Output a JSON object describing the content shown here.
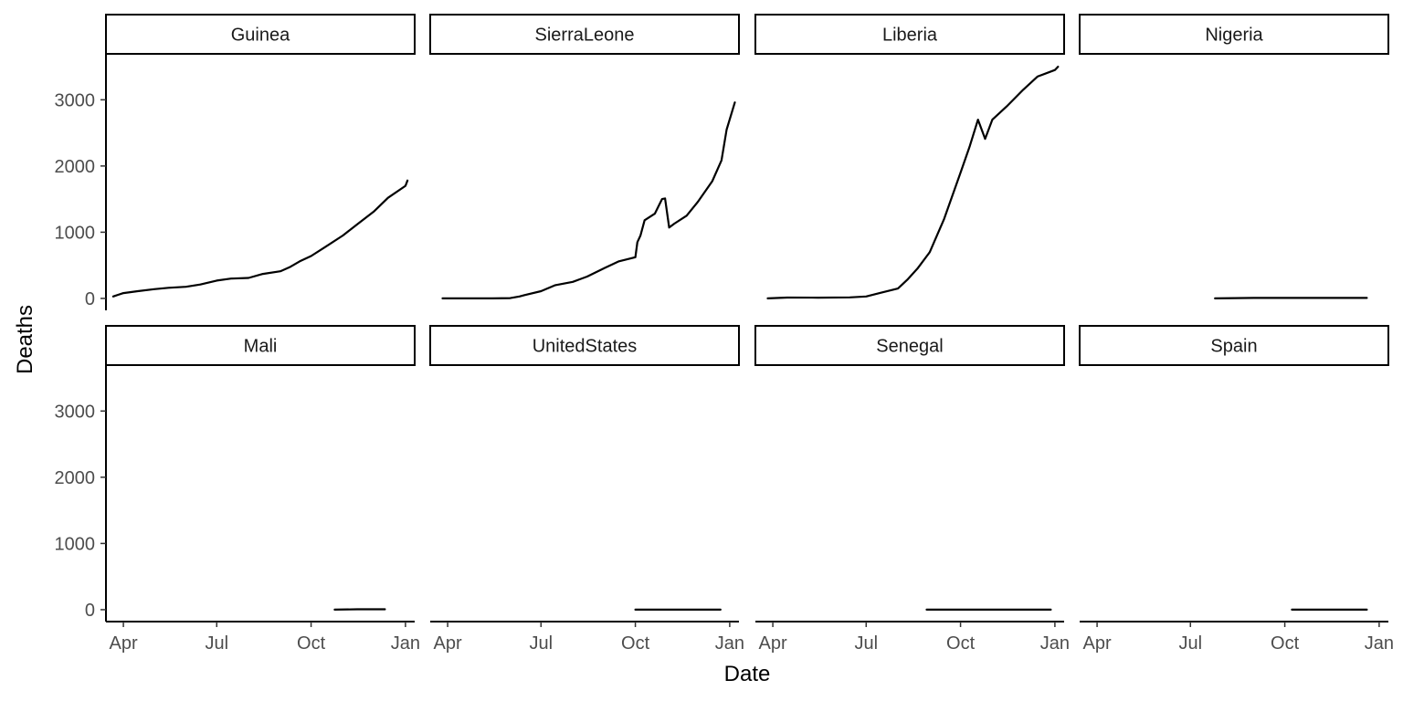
{
  "chart_data": {
    "type": "line",
    "facet": "wrap",
    "ncol": 4,
    "xlabel": "Date",
    "ylabel": "Deaths",
    "x_range": [
      "2014-03-15",
      "2015-01-10"
    ],
    "ylim": [
      -180,
      3680
    ],
    "x_ticks": [
      {
        "date": "2014-04-01",
        "label": "Apr"
      },
      {
        "date": "2014-07-01",
        "label": "Jul"
      },
      {
        "date": "2014-10-01",
        "label": "Oct"
      },
      {
        "date": "2015-01-01",
        "label": "Jan"
      }
    ],
    "y_ticks": [
      0,
      1000,
      2000,
      3000
    ],
    "panels": [
      {
        "name": "Guinea",
        "series": [
          {
            "x": "2014-03-22",
            "y": 29
          },
          {
            "x": "2014-04-01",
            "y": 80
          },
          {
            "x": "2014-04-15",
            "y": 110
          },
          {
            "x": "2014-05-01",
            "y": 140
          },
          {
            "x": "2014-05-15",
            "y": 160
          },
          {
            "x": "2014-06-01",
            "y": 175
          },
          {
            "x": "2014-06-15",
            "y": 210
          },
          {
            "x": "2014-07-01",
            "y": 270
          },
          {
            "x": "2014-07-15",
            "y": 300
          },
          {
            "x": "2014-08-01",
            "y": 310
          },
          {
            "x": "2014-08-15",
            "y": 370
          },
          {
            "x": "2014-09-01",
            "y": 410
          },
          {
            "x": "2014-09-10",
            "y": 470
          },
          {
            "x": "2014-09-20",
            "y": 560
          },
          {
            "x": "2014-10-01",
            "y": 640
          },
          {
            "x": "2014-10-15",
            "y": 780
          },
          {
            "x": "2014-11-01",
            "y": 950
          },
          {
            "x": "2014-11-15",
            "y": 1120
          },
          {
            "x": "2014-12-01",
            "y": 1310
          },
          {
            "x": "2014-12-15",
            "y": 1520
          },
          {
            "x": "2015-01-01",
            "y": 1700
          },
          {
            "x": "2015-01-03",
            "y": 1780
          }
        ]
      },
      {
        "name": "SierraLeone",
        "series": [
          {
            "x": "2014-03-27",
            "y": 0
          },
          {
            "x": "2014-04-15",
            "y": 0
          },
          {
            "x": "2014-05-15",
            "y": 0
          },
          {
            "x": "2014-06-01",
            "y": 5
          },
          {
            "x": "2014-06-10",
            "y": 30
          },
          {
            "x": "2014-06-15",
            "y": 50
          },
          {
            "x": "2014-07-01",
            "y": 110
          },
          {
            "x": "2014-07-15",
            "y": 200
          },
          {
            "x": "2014-08-01",
            "y": 250
          },
          {
            "x": "2014-08-15",
            "y": 330
          },
          {
            "x": "2014-09-01",
            "y": 460
          },
          {
            "x": "2014-09-15",
            "y": 560
          },
          {
            "x": "2014-10-01",
            "y": 622
          },
          {
            "x": "2014-10-03",
            "y": 850
          },
          {
            "x": "2014-10-06",
            "y": 950
          },
          {
            "x": "2014-10-10",
            "y": 1180
          },
          {
            "x": "2014-10-20",
            "y": 1280
          },
          {
            "x": "2014-10-27",
            "y": 1500
          },
          {
            "x": "2014-10-30",
            "y": 1510
          },
          {
            "x": "2014-11-03",
            "y": 1070
          },
          {
            "x": "2014-11-08",
            "y": 1130
          },
          {
            "x": "2014-11-20",
            "y": 1250
          },
          {
            "x": "2014-12-01",
            "y": 1460
          },
          {
            "x": "2014-12-15",
            "y": 1770
          },
          {
            "x": "2014-12-24",
            "y": 2085
          },
          {
            "x": "2014-12-29",
            "y": 2550
          },
          {
            "x": "2015-01-06",
            "y": 2960
          }
        ]
      },
      {
        "name": "Liberia",
        "series": [
          {
            "x": "2014-03-27",
            "y": 0
          },
          {
            "x": "2014-04-15",
            "y": 13
          },
          {
            "x": "2014-05-15",
            "y": 11
          },
          {
            "x": "2014-06-15",
            "y": 16
          },
          {
            "x": "2014-07-01",
            "y": 30
          },
          {
            "x": "2014-07-15",
            "y": 85
          },
          {
            "x": "2014-08-01",
            "y": 150
          },
          {
            "x": "2014-08-10",
            "y": 280
          },
          {
            "x": "2014-08-20",
            "y": 450
          },
          {
            "x": "2014-09-01",
            "y": 700
          },
          {
            "x": "2014-09-15",
            "y": 1200
          },
          {
            "x": "2014-10-01",
            "y": 1900
          },
          {
            "x": "2014-10-10",
            "y": 2300
          },
          {
            "x": "2014-10-18",
            "y": 2700
          },
          {
            "x": "2014-10-25",
            "y": 2410
          },
          {
            "x": "2014-11-01",
            "y": 2700
          },
          {
            "x": "2014-11-15",
            "y": 2900
          },
          {
            "x": "2014-12-01",
            "y": 3150
          },
          {
            "x": "2014-12-15",
            "y": 3350
          },
          {
            "x": "2015-01-01",
            "y": 3450
          },
          {
            "x": "2015-01-04",
            "y": 3500
          }
        ]
      },
      {
        "name": "Nigeria",
        "series": [
          {
            "x": "2014-07-25",
            "y": 0
          },
          {
            "x": "2014-09-01",
            "y": 7
          },
          {
            "x": "2014-10-01",
            "y": 8
          },
          {
            "x": "2014-12-20",
            "y": 8
          }
        ]
      },
      {
        "name": "Mali",
        "series": [
          {
            "x": "2014-10-24",
            "y": 1
          },
          {
            "x": "2014-11-15",
            "y": 6
          },
          {
            "x": "2014-12-12",
            "y": 6
          }
        ]
      },
      {
        "name": "UnitedStates",
        "series": [
          {
            "x": "2014-10-01",
            "y": 0
          },
          {
            "x": "2014-11-17",
            "y": 1
          },
          {
            "x": "2014-12-23",
            "y": 1
          }
        ]
      },
      {
        "name": "Senegal",
        "series": [
          {
            "x": "2014-08-29",
            "y": 0
          },
          {
            "x": "2014-12-28",
            "y": 0
          }
        ]
      },
      {
        "name": "Spain",
        "series": [
          {
            "x": "2014-10-08",
            "y": 0
          },
          {
            "x": "2014-12-20",
            "y": 0
          }
        ]
      }
    ]
  }
}
